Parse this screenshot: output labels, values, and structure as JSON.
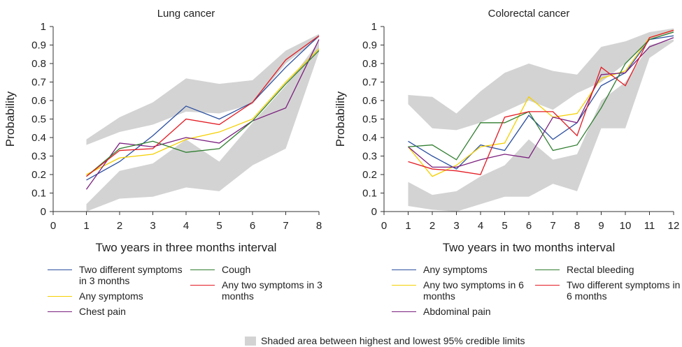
{
  "chart_data": [
    {
      "type": "line",
      "title": "Lung cancer",
      "xlabel": "Two years in three months interval",
      "ylabel": "Probability",
      "x": [
        1,
        2,
        3,
        4,
        5,
        6,
        7,
        8
      ],
      "xlim": [
        0,
        8
      ],
      "xticks": [
        0,
        1,
        2,
        3,
        4,
        5,
        6,
        7,
        8
      ],
      "ylim": [
        0,
        1
      ],
      "yticks": [
        0,
        0.1,
        0.2,
        0.3,
        0.4,
        0.5,
        0.6,
        0.7,
        0.8,
        0.9,
        1
      ],
      "legend": "bottom",
      "shade_color": "#d3d3d3",
      "shaded_areas": [
        {
          "upper": [
            0.39,
            0.51,
            0.59,
            0.72,
            0.69,
            0.71,
            0.87,
            0.96
          ],
          "lower": [
            0.36,
            0.43,
            0.47,
            0.54,
            0.53,
            0.58,
            0.8,
            0.94
          ]
        },
        {
          "upper": [
            0.04,
            0.22,
            0.26,
            0.39,
            0.27,
            0.48,
            0.68,
            0.92
          ],
          "lower": [
            0.0,
            0.07,
            0.08,
            0.13,
            0.11,
            0.25,
            0.34,
            0.86
          ]
        }
      ],
      "series": [
        {
          "name": "Two different symptoms in 3 months",
          "color": "#2b4fa0",
          "values": [
            0.17,
            0.27,
            0.41,
            0.57,
            0.5,
            0.59,
            0.78,
            0.95
          ]
        },
        {
          "name": "Any symptoms",
          "color": "#f5d000",
          "values": [
            0.2,
            0.29,
            0.31,
            0.39,
            0.43,
            0.5,
            0.7,
            0.88
          ]
        },
        {
          "name": "Chest pain",
          "color": "#7b1f7e",
          "values": [
            0.12,
            0.37,
            0.35,
            0.4,
            0.37,
            0.49,
            0.56,
            0.93
          ]
        },
        {
          "name": "Cough",
          "color": "#2f7d2f",
          "values": [
            0.19,
            0.34,
            0.38,
            0.32,
            0.34,
            0.49,
            0.69,
            0.87
          ]
        },
        {
          "name": "Any two symptoms in 3 months",
          "color": "#e31b23",
          "values": [
            0.19,
            0.33,
            0.34,
            0.5,
            0.47,
            0.59,
            0.82,
            0.95
          ]
        }
      ]
    },
    {
      "type": "line",
      "title": "Colorectal cancer",
      "xlabel": "Two years in two months interval",
      "ylabel": "Probability",
      "x": [
        1,
        2,
        3,
        4,
        5,
        6,
        7,
        8,
        9,
        10,
        11,
        12
      ],
      "xlim": [
        0,
        12
      ],
      "xticks": [
        0,
        1,
        2,
        3,
        4,
        5,
        6,
        7,
        8,
        9,
        10,
        11,
        12
      ],
      "ylim": [
        0,
        1
      ],
      "yticks": [
        0,
        0.1,
        0.2,
        0.3,
        0.4,
        0.5,
        0.6,
        0.7,
        0.8,
        0.9,
        1
      ],
      "legend": "bottom",
      "shade_color": "#d3d3d3",
      "shaded_areas": [
        {
          "upper": [
            0.63,
            0.62,
            0.53,
            0.65,
            0.75,
            0.8,
            0.76,
            0.74,
            0.89,
            0.92,
            0.97,
            0.99
          ],
          "lower": [
            0.58,
            0.45,
            0.44,
            0.48,
            0.54,
            0.6,
            0.55,
            0.64,
            0.7,
            0.8,
            0.93,
            0.97
          ]
        },
        {
          "upper": [
            0.16,
            0.09,
            0.11,
            0.19,
            0.25,
            0.39,
            0.28,
            0.31,
            0.6,
            0.7,
            0.9,
            0.93
          ],
          "lower": [
            0.03,
            0.01,
            0.0,
            0.04,
            0.08,
            0.08,
            0.15,
            0.11,
            0.45,
            0.45,
            0.83,
            0.92
          ]
        }
      ],
      "series": [
        {
          "name": "Any symptoms",
          "color": "#2b4fa0",
          "values": [
            0.38,
            0.3,
            0.23,
            0.36,
            0.33,
            0.52,
            0.39,
            0.48,
            0.68,
            0.75,
            0.93,
            0.95
          ]
        },
        {
          "name": "Any two symptoms in 6 months",
          "color": "#f5d000",
          "values": [
            0.35,
            0.19,
            0.25,
            0.35,
            0.37,
            0.62,
            0.51,
            0.53,
            0.72,
            0.76,
            0.94,
            0.98
          ]
        },
        {
          "name": "Abdominal pain",
          "color": "#7b1f7e",
          "values": [
            0.35,
            0.24,
            0.24,
            0.28,
            0.31,
            0.29,
            0.51,
            0.48,
            0.74,
            0.75,
            0.89,
            0.94
          ]
        },
        {
          "name": "Rectal bleeding",
          "color": "#2f7d2f",
          "values": [
            0.35,
            0.36,
            0.28,
            0.48,
            0.48,
            0.54,
            0.33,
            0.36,
            0.56,
            0.8,
            0.93,
            0.97
          ]
        },
        {
          "name": "Two different symptoms in 6 months",
          "color": "#e31b23",
          "values": [
            0.27,
            0.23,
            0.22,
            0.2,
            0.51,
            0.54,
            0.54,
            0.41,
            0.78,
            0.68,
            0.94,
            0.98
          ]
        }
      ]
    }
  ],
  "note": "Shaded area between highest and lowest 95% credible limits"
}
